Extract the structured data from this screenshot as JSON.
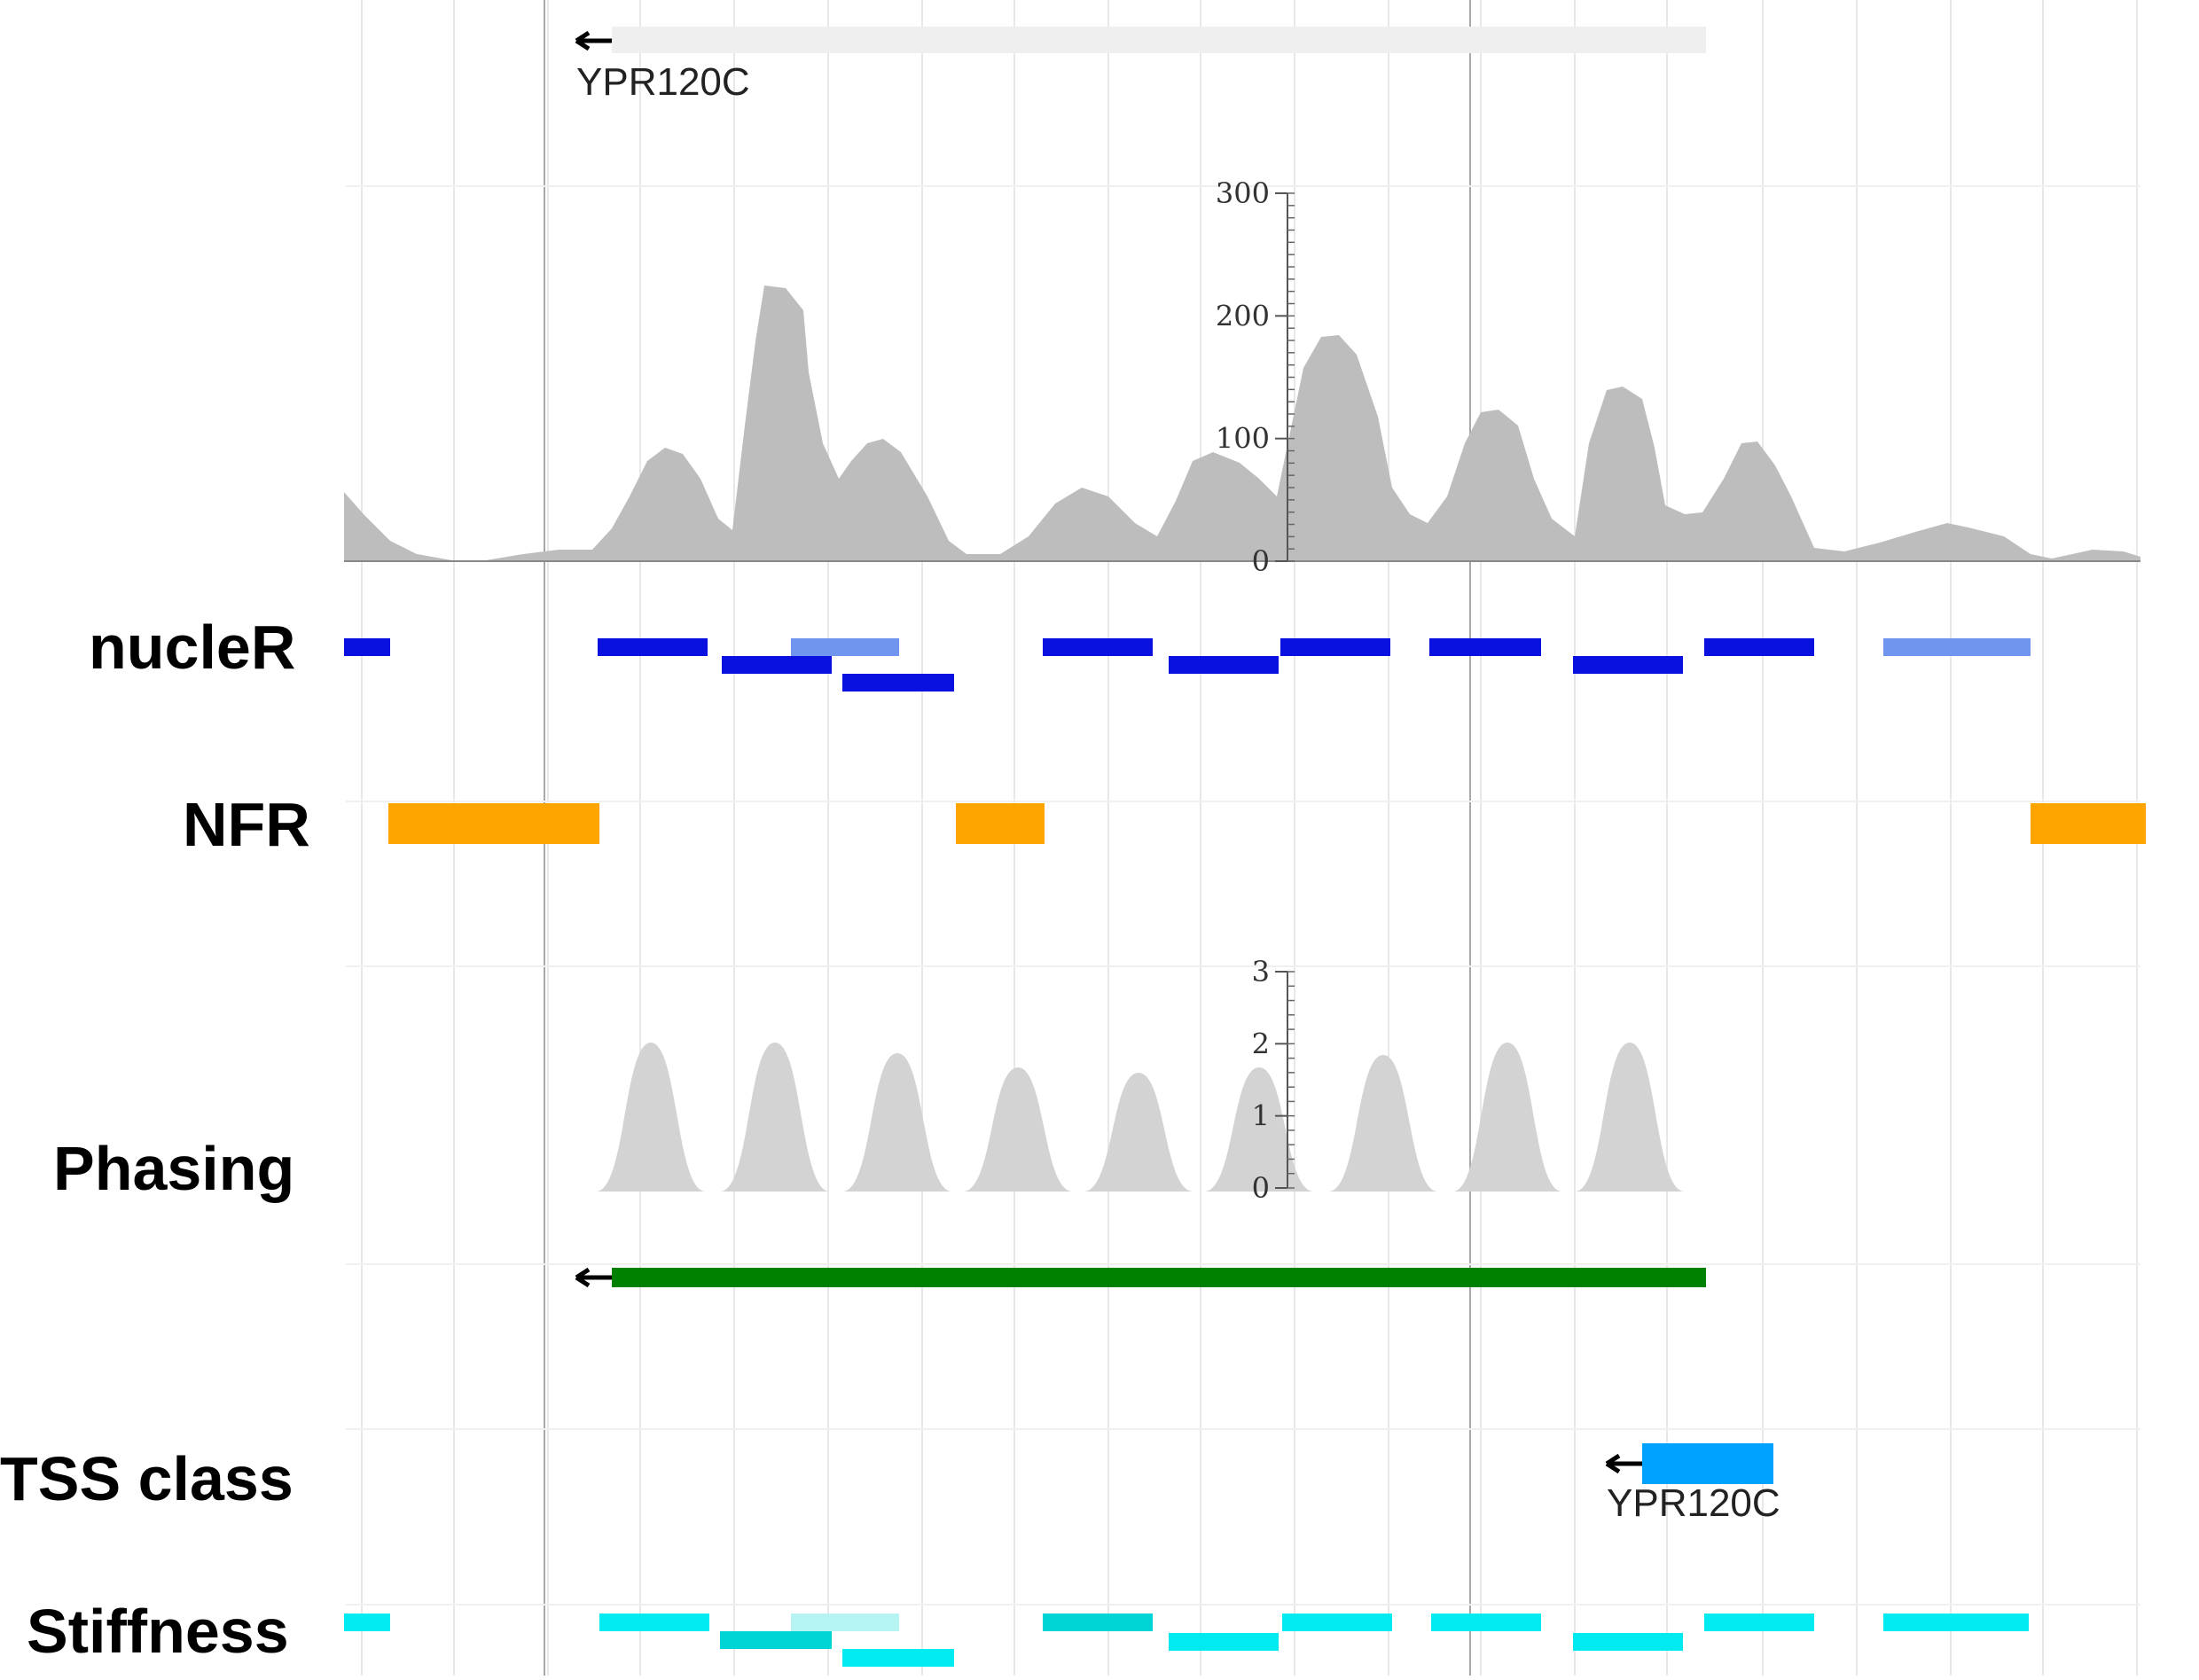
{
  "tracks": {
    "gene_label_top": "YPR120C",
    "nucleR": "nucleR",
    "nfr": "NFR",
    "phasing": "Phasing",
    "tss_class": "TSS class",
    "tss_gene_label": "YPR120C",
    "stiffness": "Stiffness"
  },
  "colors": {
    "coverage": "#bdbdbd",
    "phasing": "#d3d3d3",
    "nucleR_dark": "#0a10e0",
    "nucleR_light": "#6f95ee",
    "nfr": "#ffa500",
    "gene": "#008000",
    "tss": "#00a2ff",
    "stiffness": "#00eaf0",
    "stiffness_dark": "#00d5d5",
    "stiffness_light": "#b6f4f4"
  },
  "coverage_axis": {
    "ticks": [
      "300",
      "200",
      "100",
      "0"
    ],
    "max": 300
  },
  "phasing_axis": {
    "ticks": [
      "3",
      "2",
      "1",
      "0"
    ],
    "max": 3
  },
  "icons": [
    "arrow-left-icon"
  ]
}
